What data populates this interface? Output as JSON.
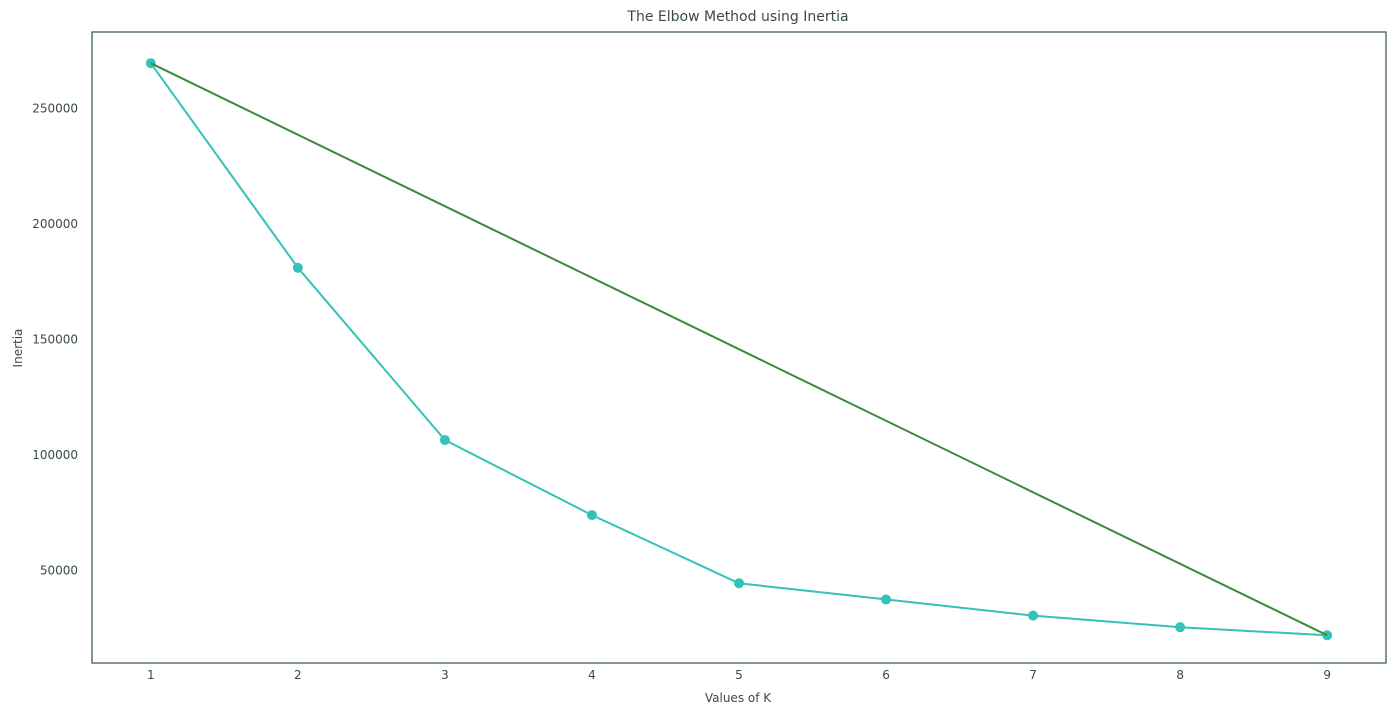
{
  "chart_data": {
    "type": "line",
    "title": "The Elbow Method using Inertia",
    "xlabel": "Values of K",
    "ylabel": "Inertia",
    "x": [
      1,
      2,
      3,
      4,
      5,
      6,
      7,
      8,
      9
    ],
    "xticks": [
      "1",
      "2",
      "3",
      "4",
      "5",
      "6",
      "7",
      "8",
      "9"
    ],
    "yticks": [
      "50000",
      "100000",
      "150000",
      "200000",
      "250000"
    ],
    "xlim": [
      0.6,
      9.4
    ],
    "ylim": [
      10000,
      283000
    ],
    "grid": false,
    "series": [
      {
        "values": [
          269500,
          181000,
          106500,
          74000,
          44500,
          37500,
          30500,
          25500,
          22000
        ],
        "color": "#35c2b8",
        "markers": true
      },
      {
        "x": [
          1,
          9
        ],
        "values": [
          269500,
          22000
        ],
        "color": "#3a8a3a",
        "markers": false
      }
    ],
    "colors": {
      "frame": "#2f4f4f",
      "text": "#3a4a48"
    }
  }
}
